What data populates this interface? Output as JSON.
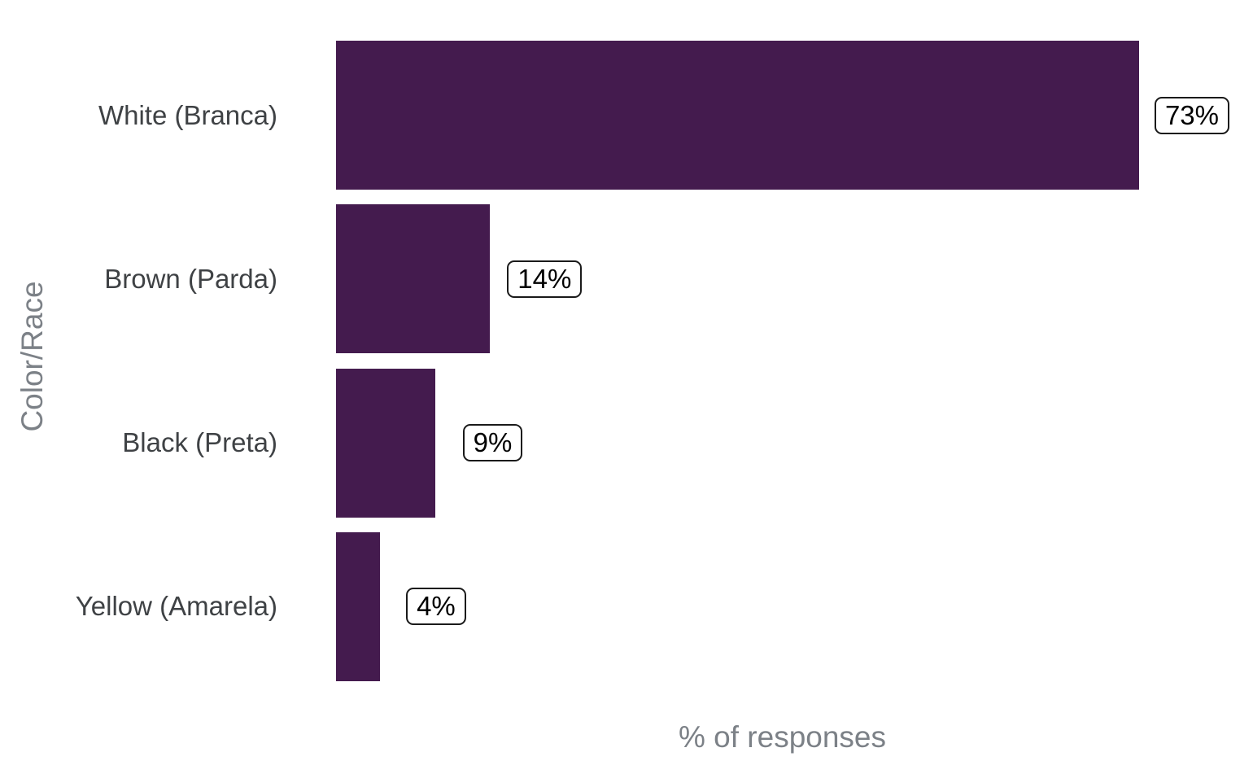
{
  "chart_data": {
    "type": "bar",
    "orientation": "horizontal",
    "title": "",
    "xlabel": "% of responses",
    "ylabel": "Color/Race",
    "categories": [
      "White (Branca)",
      "Brown (Parda)",
      "Black (Preta)",
      "Yellow (Amarela)"
    ],
    "values": [
      73,
      14,
      9,
      4
    ],
    "value_labels": [
      "73%",
      "14%",
      "9%",
      "4%"
    ],
    "xlim": [
      0,
      81
    ],
    "grid": false,
    "legend": false,
    "colors": {
      "bar_fill": "#441B4E",
      "axis_title": "#7C8187",
      "category_label": "#3F4245",
      "value_label_text": "#000000",
      "value_label_border": "#1A1A1A",
      "value_label_fill": "#FFFFFF",
      "background": "#FFFFFF"
    }
  }
}
